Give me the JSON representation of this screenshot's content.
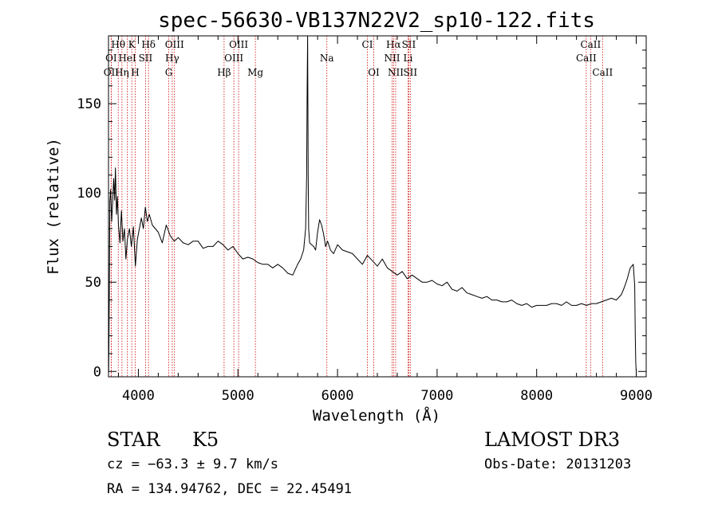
{
  "chart_data": {
    "type": "line",
    "title": "spec-56630-VB137N22V2_sp10-122.fits",
    "xlabel": "Wavelength (Å)",
    "ylabel": "Flux (relative)",
    "xlim": [
      3700,
      9100
    ],
    "ylim": [
      -3,
      188
    ],
    "x_ticks": [
      4000,
      5000,
      6000,
      7000,
      8000,
      9000
    ],
    "x_tick_labels": [
      "4000",
      "5000",
      "6000",
      "7000",
      "8000",
      "9000"
    ],
    "y_ticks": [
      0,
      50,
      100,
      150
    ],
    "y_tick_labels": [
      "0",
      "50",
      "100",
      "150"
    ],
    "grid": false,
    "line_color": "#000000",
    "marker_color": "#cc0000",
    "line_markers": [
      {
        "label": "Hθ",
        "x": 3798,
        "row": 0
      },
      {
        "label": "K",
        "x": 3934,
        "row": 0
      },
      {
        "label": "Hδ",
        "x": 4102,
        "row": 0
      },
      {
        "label": "OIII",
        "x": 4363,
        "row": 0
      },
      {
        "label": "OIII",
        "x": 5007,
        "row": 0
      },
      {
        "label": "CI",
        "x": 6300,
        "row": 0
      },
      {
        "label": "Hα",
        "x": 6563,
        "row": 0
      },
      {
        "label": "SII",
        "x": 6716,
        "row": 0
      },
      {
        "label": "CaII",
        "x": 8542,
        "row": 0
      },
      {
        "label": "OI",
        "x": 3727,
        "row": 1
      },
      {
        "label": "HeI",
        "x": 3889,
        "row": 1
      },
      {
        "label": "SII",
        "x": 4072,
        "row": 1
      },
      {
        "label": "Hγ",
        "x": 4340,
        "row": 1
      },
      {
        "label": "OIII",
        "x": 4959,
        "row": 1
      },
      {
        "label": "Na",
        "x": 5893,
        "row": 1
      },
      {
        "label": "NII",
        "x": 6548,
        "row": 1
      },
      {
        "label": "Li",
        "x": 6708,
        "row": 1
      },
      {
        "label": "CaII",
        "x": 8498,
        "row": 1
      },
      {
        "label": "OII",
        "x": 3727,
        "row": 2
      },
      {
        "label": "Hη",
        "x": 3835,
        "row": 2
      },
      {
        "label": "H",
        "x": 3968,
        "row": 2
      },
      {
        "label": "G",
        "x": 4305,
        "row": 2
      },
      {
        "label": "Hβ",
        "x": 4861,
        "row": 2
      },
      {
        "label": "Mg",
        "x": 5175,
        "row": 2
      },
      {
        "label": "OI",
        "x": 6364,
        "row": 2
      },
      {
        "label": "NII",
        "x": 6584,
        "row": 2
      },
      {
        "label": "SII",
        "x": 6731,
        "row": 2
      },
      {
        "label": "CaII",
        "x": 8662,
        "row": 2
      }
    ],
    "series": [
      {
        "x": [
          3702,
          3708,
          3714,
          3722,
          3732,
          3742,
          3752,
          3762,
          3770,
          3780,
          3790,
          3800,
          3815,
          3830,
          3845,
          3860,
          3875,
          3890,
          3910,
          3930,
          3950,
          3970,
          3990,
          4010,
          4030,
          4050,
          4070,
          4090,
          4110,
          4140,
          4170,
          4200,
          4240,
          4280,
          4320,
          4360,
          4400,
          4450,
          4500,
          4550,
          4600,
          4650,
          4700,
          4750,
          4800,
          4850,
          4900,
          4950,
          5000,
          5050,
          5100,
          5150,
          5200,
          5250,
          5300,
          5350,
          5400,
          5450,
          5500,
          5550,
          5600,
          5630,
          5660,
          5680,
          5690,
          5695,
          5700,
          5705,
          5710,
          5720,
          5740,
          5760,
          5780,
          5800,
          5820,
          5840,
          5860,
          5880,
          5900,
          5930,
          5960,
          6000,
          6050,
          6100,
          6150,
          6200,
          6250,
          6300,
          6350,
          6400,
          6450,
          6500,
          6550,
          6600,
          6650,
          6700,
          6750,
          6800,
          6850,
          6900,
          6950,
          7000,
          7050,
          7100,
          7150,
          7200,
          7250,
          7300,
          7350,
          7400,
          7450,
          7500,
          7550,
          7600,
          7650,
          7700,
          7750,
          7800,
          7850,
          7900,
          7950,
          8000,
          8050,
          8100,
          8150,
          8200,
          8250,
          8300,
          8350,
          8400,
          8450,
          8500,
          8550,
          8600,
          8650,
          8700,
          8750,
          8800,
          8850,
          8880,
          8910,
          8940,
          8970,
          8985,
          8990,
          8995,
          9000
        ],
        "y": [
          0,
          42,
          95,
          102,
          84,
          95,
          108,
          96,
          114,
          88,
          98,
          82,
          72,
          90,
          73,
          80,
          63,
          74,
          80,
          70,
          81,
          59,
          74,
          80,
          86,
          80,
          92,
          84,
          88,
          82,
          80,
          78,
          72,
          82,
          76,
          73,
          75,
          72,
          71,
          73,
          73,
          69,
          70,
          70,
          73,
          71,
          68,
          70,
          66,
          63,
          64,
          63,
          61,
          60,
          60,
          58,
          60,
          58,
          55,
          54,
          60,
          63,
          68,
          80,
          110,
          158,
          188,
          110,
          80,
          72,
          71,
          70,
          68,
          78,
          85,
          82,
          77,
          70,
          73,
          68,
          66,
          71,
          68,
          67,
          66,
          63,
          60,
          65,
          62,
          59,
          63,
          58,
          56,
          54,
          56,
          52,
          54,
          52,
          50,
          50,
          51,
          49,
          48,
          50,
          46,
          45,
          47,
          44,
          43,
          42,
          41,
          42,
          40,
          40,
          39,
          39,
          40,
          38,
          37,
          38,
          36,
          37,
          37,
          37,
          38,
          38,
          37,
          39,
          37,
          37,
          38,
          37,
          38,
          38,
          39,
          40,
          41,
          40,
          43,
          47,
          52,
          58,
          60,
          48,
          20,
          5,
          0
        ]
      }
    ]
  },
  "labels": {
    "object_class": "STAR",
    "subclass": "K5",
    "survey": "LAMOST DR3",
    "cz_line": "cz = −63.3 ± 9.7 km/s",
    "obs_date_line": "Obs-Date: 20131203",
    "radec_line": "RA = 134.94762, DEC =  22.45491"
  }
}
